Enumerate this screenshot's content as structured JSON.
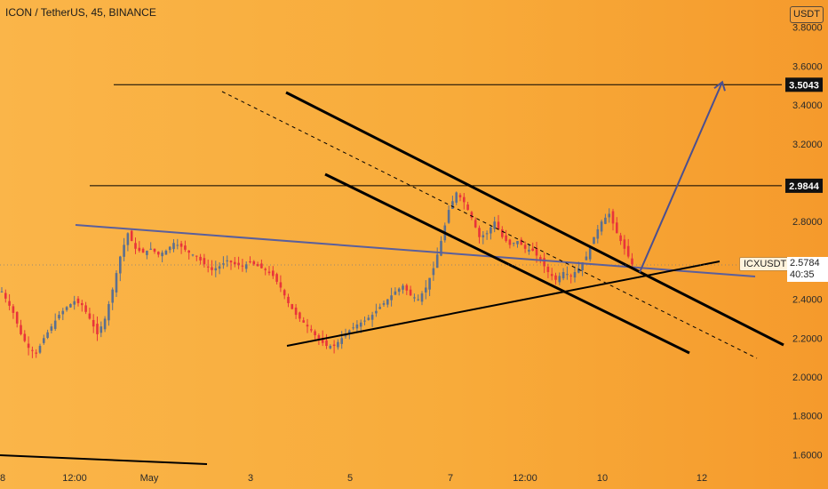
{
  "header": {
    "title": "ICON / TetherUS, 45, BINANCE"
  },
  "price_scale": {
    "unit": "USDT"
  },
  "ticker": {
    "symbol": "ICXUSDT",
    "last_price": "2.5784",
    "countdown": "40:35"
  },
  "colors": {
    "background": "#f9a93a",
    "up": "#5b6f8f",
    "down": "#e8343a",
    "trendline": "#5a5f9c",
    "levels": "#000000"
  },
  "chart_data": {
    "type": "candlestick",
    "title": "ICON / TetherUS, 45, BINANCE",
    "y_axis": {
      "ticks": [
        1.6,
        1.8,
        2.0,
        2.2,
        2.4,
        2.6,
        2.8,
        3.0,
        3.2,
        3.4,
        3.6,
        3.8
      ],
      "position": "right"
    },
    "x_axis": {
      "ticks": [
        "8",
        "12:00",
        "May",
        "3",
        "5",
        "7",
        "12:00",
        "10",
        "12"
      ]
    },
    "price_path": [
      [
        0,
        2.44
      ],
      [
        3,
        2.33
      ],
      [
        5,
        2.22
      ],
      [
        7,
        2.15
      ],
      [
        9,
        2.12
      ],
      [
        11,
        2.2
      ],
      [
        13,
        2.26
      ],
      [
        15,
        2.32
      ],
      [
        17,
        2.36
      ],
      [
        19,
        2.39
      ],
      [
        21,
        2.37
      ],
      [
        23,
        2.3
      ],
      [
        25,
        2.22
      ],
      [
        27,
        2.3
      ],
      [
        29,
        2.45
      ],
      [
        31,
        2.62
      ],
      [
        33,
        2.74
      ],
      [
        35,
        2.66
      ],
      [
        37,
        2.64
      ],
      [
        39,
        2.66
      ],
      [
        41,
        2.63
      ],
      [
        43,
        2.65
      ],
      [
        45,
        2.69
      ],
      [
        47,
        2.67
      ],
      [
        49,
        2.64
      ],
      [
        51,
        2.62
      ],
      [
        53,
        2.58
      ],
      [
        55,
        2.55
      ],
      [
        57,
        2.57
      ],
      [
        59,
        2.6
      ],
      [
        61,
        2.58
      ],
      [
        63,
        2.57
      ],
      [
        65,
        2.59
      ],
      [
        67,
        2.57
      ],
      [
        69,
        2.55
      ],
      [
        71,
        2.52
      ],
      [
        73,
        2.46
      ],
      [
        75,
        2.38
      ],
      [
        77,
        2.32
      ],
      [
        79,
        2.28
      ],
      [
        81,
        2.24
      ],
      [
        83,
        2.19
      ],
      [
        85,
        2.16
      ],
      [
        87,
        2.16
      ],
      [
        89,
        2.2
      ],
      [
        91,
        2.24
      ],
      [
        93,
        2.27
      ],
      [
        95,
        2.29
      ],
      [
        97,
        2.32
      ],
      [
        99,
        2.36
      ],
      [
        101,
        2.4
      ],
      [
        103,
        2.44
      ],
      [
        105,
        2.47
      ],
      [
        107,
        2.42
      ],
      [
        109,
        2.4
      ],
      [
        111,
        2.46
      ],
      [
        113,
        2.56
      ],
      [
        115,
        2.7
      ],
      [
        117,
        2.86
      ],
      [
        119,
        2.95
      ],
      [
        121,
        2.9
      ],
      [
        123,
        2.82
      ],
      [
        125,
        2.72
      ],
      [
        127,
        2.74
      ],
      [
        129,
        2.8
      ],
      [
        131,
        2.72
      ],
      [
        133,
        2.68
      ],
      [
        135,
        2.7
      ],
      [
        137,
        2.66
      ],
      [
        139,
        2.65
      ],
      [
        141,
        2.6
      ],
      [
        143,
        2.54
      ],
      [
        145,
        2.5
      ],
      [
        147,
        2.54
      ],
      [
        149,
        2.52
      ],
      [
        151,
        2.56
      ],
      [
        153,
        2.62
      ],
      [
        155,
        2.72
      ],
      [
        157,
        2.8
      ],
      [
        159,
        2.84
      ],
      [
        161,
        2.74
      ],
      [
        163,
        2.66
      ],
      [
        165,
        2.58
      ]
    ],
    "horizontal_levels": [
      3.5043,
      2.9844
    ],
    "price_labels": [
      "3.5043",
      "2.9844"
    ],
    "projection": {
      "from": [
        165,
        2.58
      ],
      "to": [
        182,
        3.5
      ]
    }
  }
}
